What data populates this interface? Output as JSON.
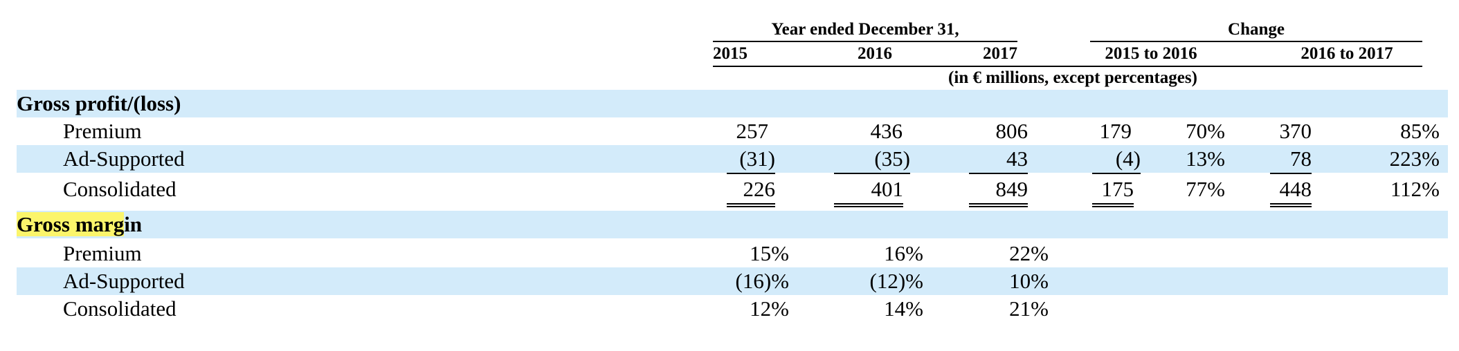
{
  "header": {
    "group_year": "Year ended December 31,",
    "group_change": "Change",
    "years": [
      "2015",
      "2016",
      "2017"
    ],
    "changes": [
      "2015 to 2016",
      "2016 to 2017"
    ],
    "units": "(in € millions, except percentages)"
  },
  "gross_profit": {
    "title_a": "Gross profit/(loss)",
    "rows": [
      {
        "label": "Premium",
        "v2015": "257",
        "v2016": "436",
        "v2017": "806",
        "c1_abs": "179",
        "c1_pct": "70%",
        "c2_abs": "370",
        "c2_pct": "85%"
      },
      {
        "label": "Ad-Supported",
        "v2015": "(31)",
        "v2016": "(35)",
        "v2017": "43",
        "c1_abs": "(4)",
        "c1_pct": "13%",
        "c2_abs": "78",
        "c2_pct": "223%"
      },
      {
        "label": "Consolidated",
        "v2015": "226",
        "v2016": "401",
        "v2017": "849",
        "c1_abs": "175",
        "c1_pct": "77%",
        "c2_abs": "448",
        "c2_pct": "112%"
      }
    ]
  },
  "gross_margin": {
    "title_highlighted": "Gross marg",
    "title_rest": "in",
    "rows": [
      {
        "label": "Premium",
        "v2015": "15%",
        "v2016": "16%",
        "v2017": "22%"
      },
      {
        "label": "Ad-Supported",
        "v2015": "(16)%",
        "v2016": "(12)%",
        "v2017": "10%"
      },
      {
        "label": "Consolidated",
        "v2015": "12%",
        "v2016": "14%",
        "v2017": "21%"
      }
    ]
  },
  "colors": {
    "row_band": "#d3ebfa",
    "highlight": "#fbf56b"
  }
}
